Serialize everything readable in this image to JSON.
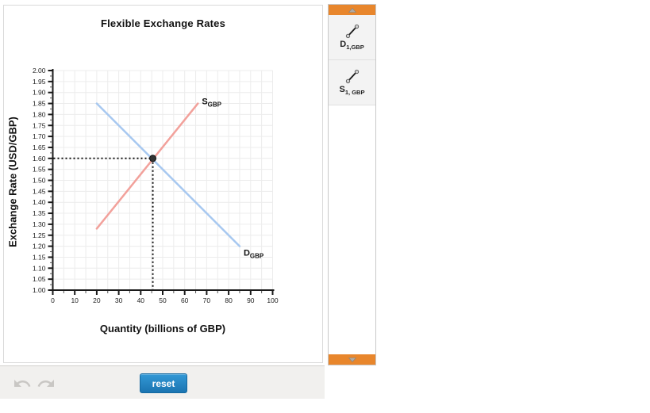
{
  "chart_data": {
    "type": "line",
    "title": "Flexible Exchange Rates",
    "xlabel": "Quantity (billions of GBP)",
    "ylabel": "Exchange Rate (USD/GBP)",
    "xlim": [
      0,
      100
    ],
    "ylim": [
      1.0,
      2.0
    ],
    "x_ticks": [
      0,
      10,
      20,
      30,
      40,
      50,
      60,
      70,
      80,
      90,
      100
    ],
    "y_ticks": [
      1.0,
      1.05,
      1.1,
      1.15,
      1.2,
      1.25,
      1.3,
      1.35,
      1.4,
      1.45,
      1.5,
      1.55,
      1.6,
      1.65,
      1.7,
      1.75,
      1.8,
      1.85,
      1.9,
      1.95,
      2.0
    ],
    "y_tick_decimals": 2,
    "grid": true,
    "legend_position": "none",
    "series": [
      {
        "name": "demand",
        "label_main": "D",
        "label_sub": "GBP",
        "color": "#a7c8f0",
        "points": [
          [
            20,
            1.85
          ],
          [
            85,
            1.2
          ]
        ]
      },
      {
        "name": "supply",
        "label_main": "S",
        "label_sub": "GBP",
        "color": "#f2a19b",
        "points": [
          [
            20,
            1.28
          ],
          [
            66,
            1.85
          ]
        ]
      }
    ],
    "equilibrium": {
      "x": 45.5,
      "y": 1.6,
      "dotted_color": "#111111",
      "dot_color": "#333333"
    }
  },
  "toolbar": {
    "undo_icon": "undo-arrow",
    "redo_icon": "redo-arrow",
    "reset_label": "reset",
    "reset_color": "#1b74b1",
    "background": "#f1f0ee"
  },
  "sidebar": {
    "accent_color": "#e8862c",
    "scroll_up_icon": "triangle-up",
    "scroll_down_icon": "triangle-down",
    "tools": [
      {
        "icon": "line-segment-icon",
        "label_main": "D",
        "label_sub": "1,GBP"
      },
      {
        "icon": "line-segment-icon",
        "label_main": "S",
        "label_sub": "1, GBP"
      }
    ]
  }
}
